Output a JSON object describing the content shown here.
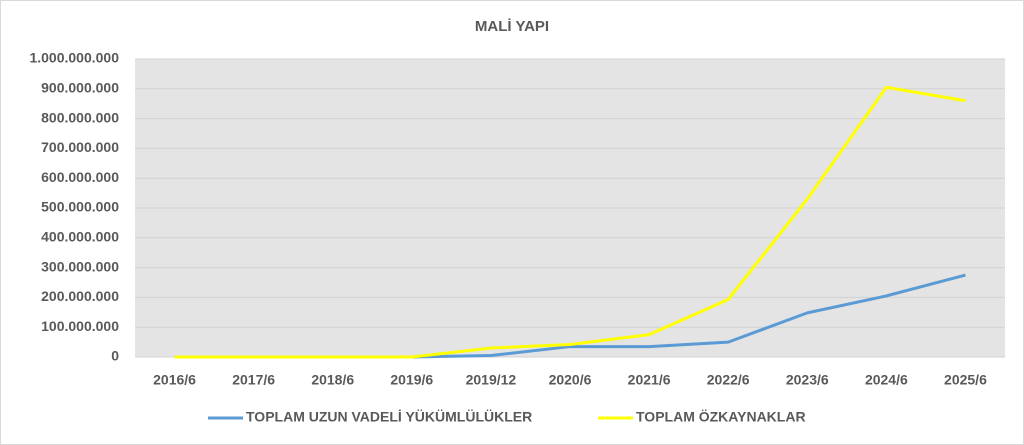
{
  "chart_data": {
    "type": "line",
    "title": "MALİ YAPI",
    "categories": [
      "2016/6",
      "2017/6",
      "2018/6",
      "2019/6",
      "2019/12",
      "2020/6",
      "2021/6",
      "2022/6",
      "2023/6",
      "2024/6",
      "2025/6"
    ],
    "series": [
      {
        "name": "TOPLAM UZUN VADELİ YÜKÜMLÜLÜKLER",
        "color": "#5b9bd5",
        "values": [
          0,
          0,
          0,
          0,
          5000000,
          35000000,
          35000000,
          50000000,
          148000000,
          205000000,
          275000000
        ]
      },
      {
        "name": "TOPLAM ÖZKAYNAKLAR",
        "color": "#ffff00",
        "values": [
          0,
          0,
          0,
          0,
          30000000,
          42000000,
          75000000,
          193000000,
          530000000,
          905000000,
          860000000
        ]
      }
    ],
    "ylim": [
      0,
      1000000000
    ],
    "yticks": [
      0,
      {
        "value": 100000000,
        "label": "100.000.000"
      },
      {
        "value": 200000000,
        "label": "200.000.000"
      },
      {
        "value": 300000000,
        "label": "300.000.000"
      },
      {
        "value": 400000000,
        "label": "400.000.000"
      },
      {
        "value": 500000000,
        "label": "500.000.000"
      },
      {
        "value": 600000000,
        "label": "600.000.000"
      },
      {
        "value": 700000000,
        "label": "700.000.000"
      },
      {
        "value": 800000000,
        "label": "800.000.000"
      },
      {
        "value": 900000000,
        "label": "900.000.000"
      },
      {
        "value": 1000000000,
        "label": "1.000.000.000"
      }
    ],
    "grid": true,
    "legend": "bottom"
  }
}
